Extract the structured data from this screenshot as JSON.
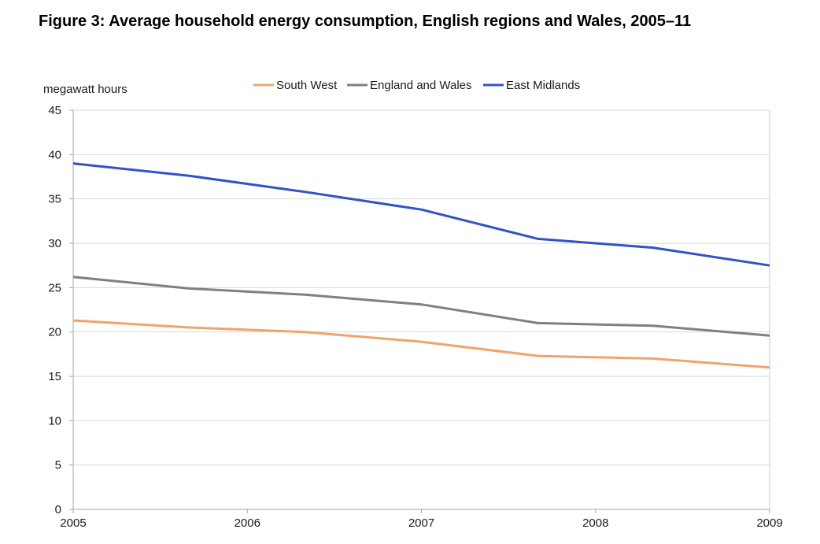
{
  "title": "Figure 3: Average household energy consumption, English regions and Wales, 2005–11",
  "chart_data": {
    "type": "line",
    "ylabel": "megawatt hours",
    "xlabel": "",
    "xlim": [
      2005,
      2009
    ],
    "ylim": [
      0,
      45
    ],
    "y_ticks": [
      0,
      5,
      10,
      15,
      20,
      25,
      30,
      35,
      40,
      45
    ],
    "x_ticks": [
      "2005",
      "2006",
      "2007",
      "2008",
      "2009"
    ],
    "x_tick_values": [
      2005,
      2006,
      2007,
      2008,
      2009
    ],
    "grid": "horizontal",
    "legend_position": "top",
    "x": [
      2005,
      2005.67,
      2006.33,
      2007,
      2007.67,
      2008.33,
      2009
    ],
    "series": [
      {
        "name": "South West",
        "color": "#F0A46C",
        "values": [
          21.3,
          20.5,
          20.0,
          18.9,
          17.3,
          17.0,
          16.0
        ]
      },
      {
        "name": "England and Wales",
        "color": "#808080",
        "values": [
          26.2,
          24.9,
          24.2,
          23.1,
          21.0,
          20.7,
          19.6
        ]
      },
      {
        "name": "East Midlands",
        "color": "#3352C6",
        "values": [
          39.0,
          37.6,
          35.8,
          33.8,
          30.5,
          29.5,
          27.5
        ]
      }
    ]
  }
}
